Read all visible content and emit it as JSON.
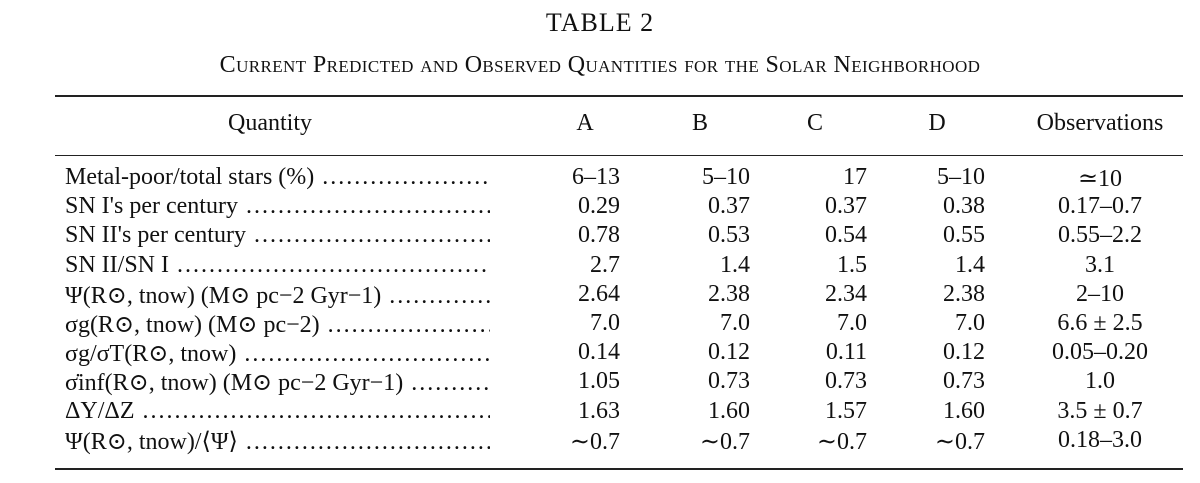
{
  "table": {
    "title": "TABLE 2",
    "caption": "Current Predicted and Observed Quantities for the Solar Neighborhood",
    "headers": {
      "quantity": "Quantity",
      "a": "A",
      "b": "B",
      "c": "C",
      "d": "D",
      "observations": "Observations"
    },
    "rows": [
      {
        "quantity": "Metal-poor/total stars (%)",
        "a": "6–13",
        "b": "5–10",
        "c": "17",
        "d": "5–10",
        "obs": "≃10"
      },
      {
        "quantity": "SN I's per century",
        "a": "0.29",
        "b": "0.37",
        "c": "0.37",
        "d": "0.38",
        "obs": "0.17–0.7"
      },
      {
        "quantity": "SN II's per century",
        "a": "0.78",
        "b": "0.53",
        "c": "0.54",
        "d": "0.55",
        "obs": "0.55–2.2"
      },
      {
        "quantity": "SN II/SN I",
        "a": "2.7",
        "b": "1.4",
        "c": "1.5",
        "d": "1.4",
        "obs": "3.1"
      },
      {
        "quantity": "Ψ(R⊙, tnow) (M⊙ pc−2 Gyr−1)",
        "a": "2.64",
        "b": "2.38",
        "c": "2.34",
        "d": "2.38",
        "obs": "2–10"
      },
      {
        "quantity": "σg(R⊙, tnow) (M⊙ pc−2)",
        "a": "7.0",
        "b": "7.0",
        "c": "7.0",
        "d": "7.0",
        "obs": "6.6 ± 2.5"
      },
      {
        "quantity": "σg/σT(R⊙, tnow)",
        "a": "0.14",
        "b": "0.12",
        "c": "0.11",
        "d": "0.12",
        "obs": "0.05–0.20"
      },
      {
        "quantity": "σ̇inf(R⊙, tnow) (M⊙ pc−2 Gyr−1)",
        "a": "1.05",
        "b": "0.73",
        "c": "0.73",
        "d": "0.73",
        "obs": "1.0"
      },
      {
        "quantity": "ΔY/ΔZ",
        "a": "1.63",
        "b": "1.60",
        "c": "1.57",
        "d": "1.60",
        "obs": "3.5 ± 0.7"
      },
      {
        "quantity": "Ψ(R⊙, tnow)/⟨Ψ⟩",
        "a": "∼0.7",
        "b": "∼0.7",
        "c": "∼0.7",
        "d": "∼0.7",
        "obs": "0.18–3.0"
      }
    ]
  }
}
